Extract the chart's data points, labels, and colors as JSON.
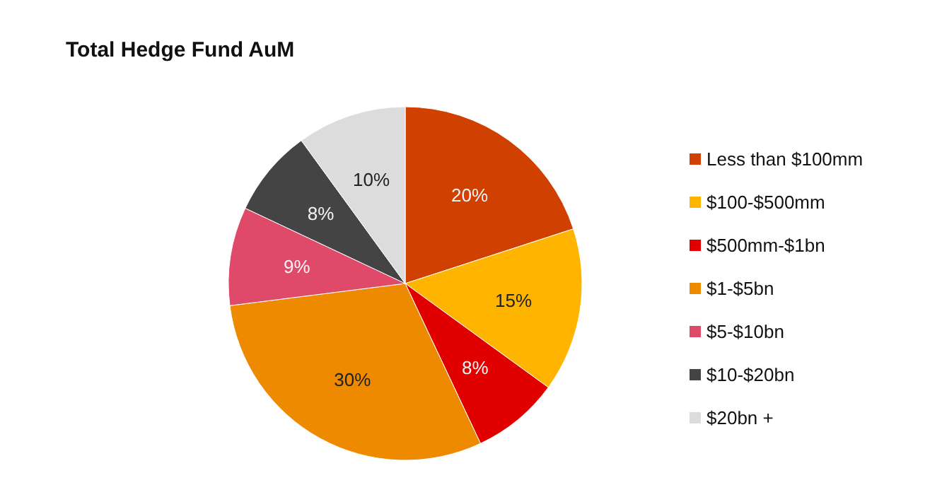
{
  "chart_data": {
    "type": "pie",
    "title": "Total Hedge Fund AuM",
    "categories": [
      "Less than $100mm",
      "$100-$500mm",
      "$500mm-$1bn",
      "$1-$5bn",
      "$5-$10bn",
      "$10-$20bn",
      "$20bn +"
    ],
    "values": [
      20,
      15,
      8,
      30,
      9,
      8,
      10
    ],
    "colors": [
      "#d04000",
      "#ffb400",
      "#e00000",
      "#ee8a00",
      "#e04a6a",
      "#444444",
      "#dcdcdc"
    ],
    "value_labels": [
      "20%",
      "15%",
      "8%",
      "30%",
      "9%",
      "8%",
      "10%"
    ],
    "legend": "right"
  }
}
